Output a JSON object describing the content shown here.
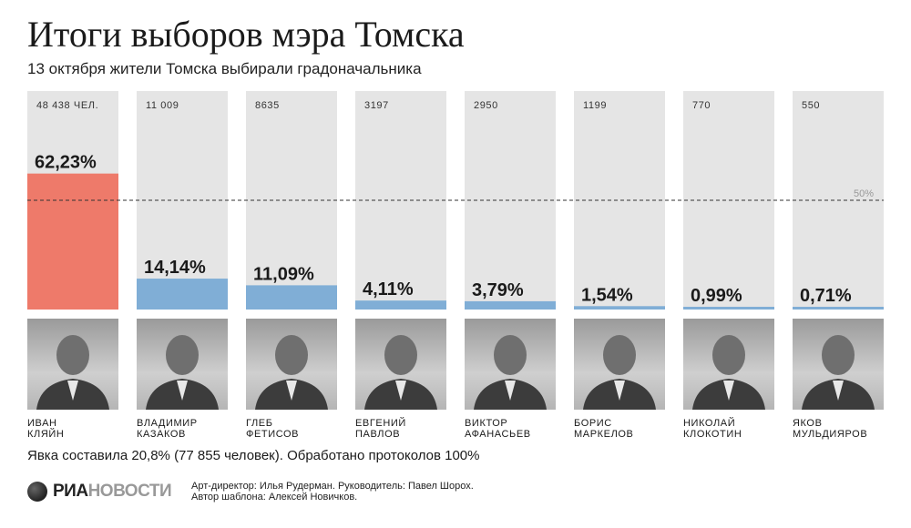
{
  "header": {
    "title": "Итоги выборов мэра Томска",
    "subtitle": "13 октября жители Томска выбирали градоначальника"
  },
  "chart_data": {
    "type": "bar",
    "title": "Итоги выборов мэра Томска",
    "ylim": [
      0,
      100
    ],
    "reference_line": {
      "value": 50,
      "label": "50%"
    },
    "categories": [
      "Иван Кляйн",
      "Владимир Казаков",
      "Глеб Фетисов",
      "Евгений Павлов",
      "Виктор Афанасьев",
      "Борис Маркелов",
      "Николай Клокотин",
      "Яков Мульдияров"
    ],
    "values": [
      62.23,
      14.14,
      11.09,
      4.11,
      3.79,
      1.54,
      0.99,
      0.71
    ],
    "value_labels": [
      "62,23%",
      "14,14%",
      "11,09%",
      "4,11%",
      "3,79%",
      "1,54%",
      "0,99%",
      "0,71%"
    ],
    "votes": [
      48438,
      11009,
      8635,
      3197,
      2950,
      1199,
      770,
      550
    ],
    "vote_labels": [
      "48 438 ЧЕЛ.",
      "11 009",
      "8635",
      "3197",
      "2950",
      "1199",
      "770",
      "550"
    ],
    "colors": {
      "winner": "#ee7a6a",
      "other": "#80aed6",
      "background": "#e5e5e5",
      "reference": "#333333"
    }
  },
  "candidates": [
    {
      "first": "ИВАН",
      "last": "КЛЯЙН"
    },
    {
      "first": "ВЛАДИМИР",
      "last": "КАЗАКОВ"
    },
    {
      "first": "ГЛЕБ",
      "last": "ФЕТИСОВ"
    },
    {
      "first": "ЕВГЕНИЙ",
      "last": "ПАВЛОВ"
    },
    {
      "first": "ВИКТОР",
      "last": "АФАНАСЬЕВ"
    },
    {
      "first": "БОРИС",
      "last": "МАРКЕЛОВ"
    },
    {
      "first": "НИКОЛАЙ",
      "last": "КЛОКОТИН"
    },
    {
      "first": "ЯКОВ",
      "last": "МУЛЬДИЯРОВ"
    }
  ],
  "footer": {
    "turnout": "Явка составила 20,8% (77 855 человек). Обработано протоколов 100%",
    "logo_ria": "РИА",
    "logo_novosti": "НОВОСТИ",
    "credit_line1": "Арт-директор: Илья Рудерман. Руководитель: Павел Шорох.",
    "credit_line2": "Автор шаблона: Алексей Новичков."
  }
}
